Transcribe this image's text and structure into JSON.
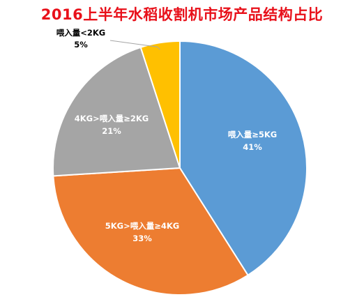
{
  "chart_data": {
    "type": "pie",
    "title": "2016上半年水稻收割机市场产品结构占比",
    "start_angle_deg": 0,
    "direction": "clockwise",
    "slices": [
      {
        "label": "喂入量≥5KG",
        "value": 41,
        "percent_label": "41%",
        "color": "#5b9bd5",
        "text_color": "#ffffff"
      },
      {
        "label": "5KG>喂入量≥4KG",
        "value": 33,
        "percent_label": "33%",
        "color": "#ed7d31",
        "text_color": "#ffffff"
      },
      {
        "label": "4KG>喂入量≥2KG",
        "value": 21,
        "percent_label": "21%",
        "color": "#a5a5a5",
        "text_color": "#ffffff"
      },
      {
        "label": "喂入量<2KG",
        "value": 5,
        "percent_label": "5%",
        "color": "#ffc000",
        "text_color": "#000000"
      }
    ]
  }
}
